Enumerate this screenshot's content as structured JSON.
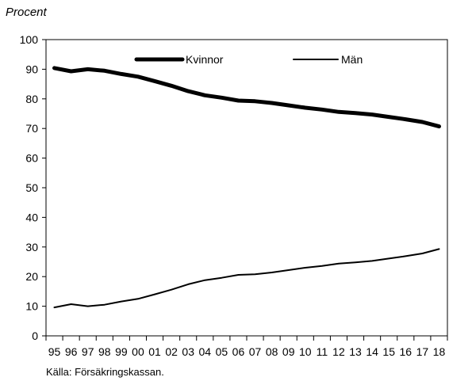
{
  "chart_data": {
    "type": "line",
    "ylabel": "Procent",
    "ylim": [
      0,
      100
    ],
    "y_ticks": [
      0,
      10,
      20,
      30,
      40,
      50,
      60,
      70,
      80,
      90,
      100
    ],
    "categories": [
      "95",
      "96",
      "97",
      "98",
      "99",
      "00",
      "01",
      "02",
      "03",
      "04",
      "05",
      "06",
      "07",
      "08",
      "09",
      "10",
      "11",
      "12",
      "13",
      "14",
      "15",
      "16",
      "17",
      "18"
    ],
    "series": [
      {
        "name": "Kvinnor",
        "color": "#000000",
        "values": [
          90.4,
          89.3,
          90.0,
          89.5,
          88.4,
          87.5,
          86.0,
          84.4,
          82.6,
          81.2,
          80.4,
          79.4,
          79.2,
          78.6,
          77.8,
          77.0,
          76.4,
          75.6,
          75.2,
          74.7,
          73.9,
          73.1,
          72.2,
          70.7
        ]
      },
      {
        "name": "Män",
        "color": "#000000",
        "values": [
          9.6,
          10.7,
          10.0,
          10.5,
          11.6,
          12.5,
          14.0,
          15.6,
          17.4,
          18.8,
          19.6,
          20.6,
          20.8,
          21.4,
          22.2,
          23.0,
          23.6,
          24.4,
          24.8,
          25.3,
          26.1,
          26.9,
          27.8,
          29.3
        ]
      }
    ],
    "legend": {
      "position": "top",
      "entries": [
        "Kvinnor",
        "Män"
      ]
    },
    "grid": false,
    "source": "Källa: Försäkringskassan."
  }
}
